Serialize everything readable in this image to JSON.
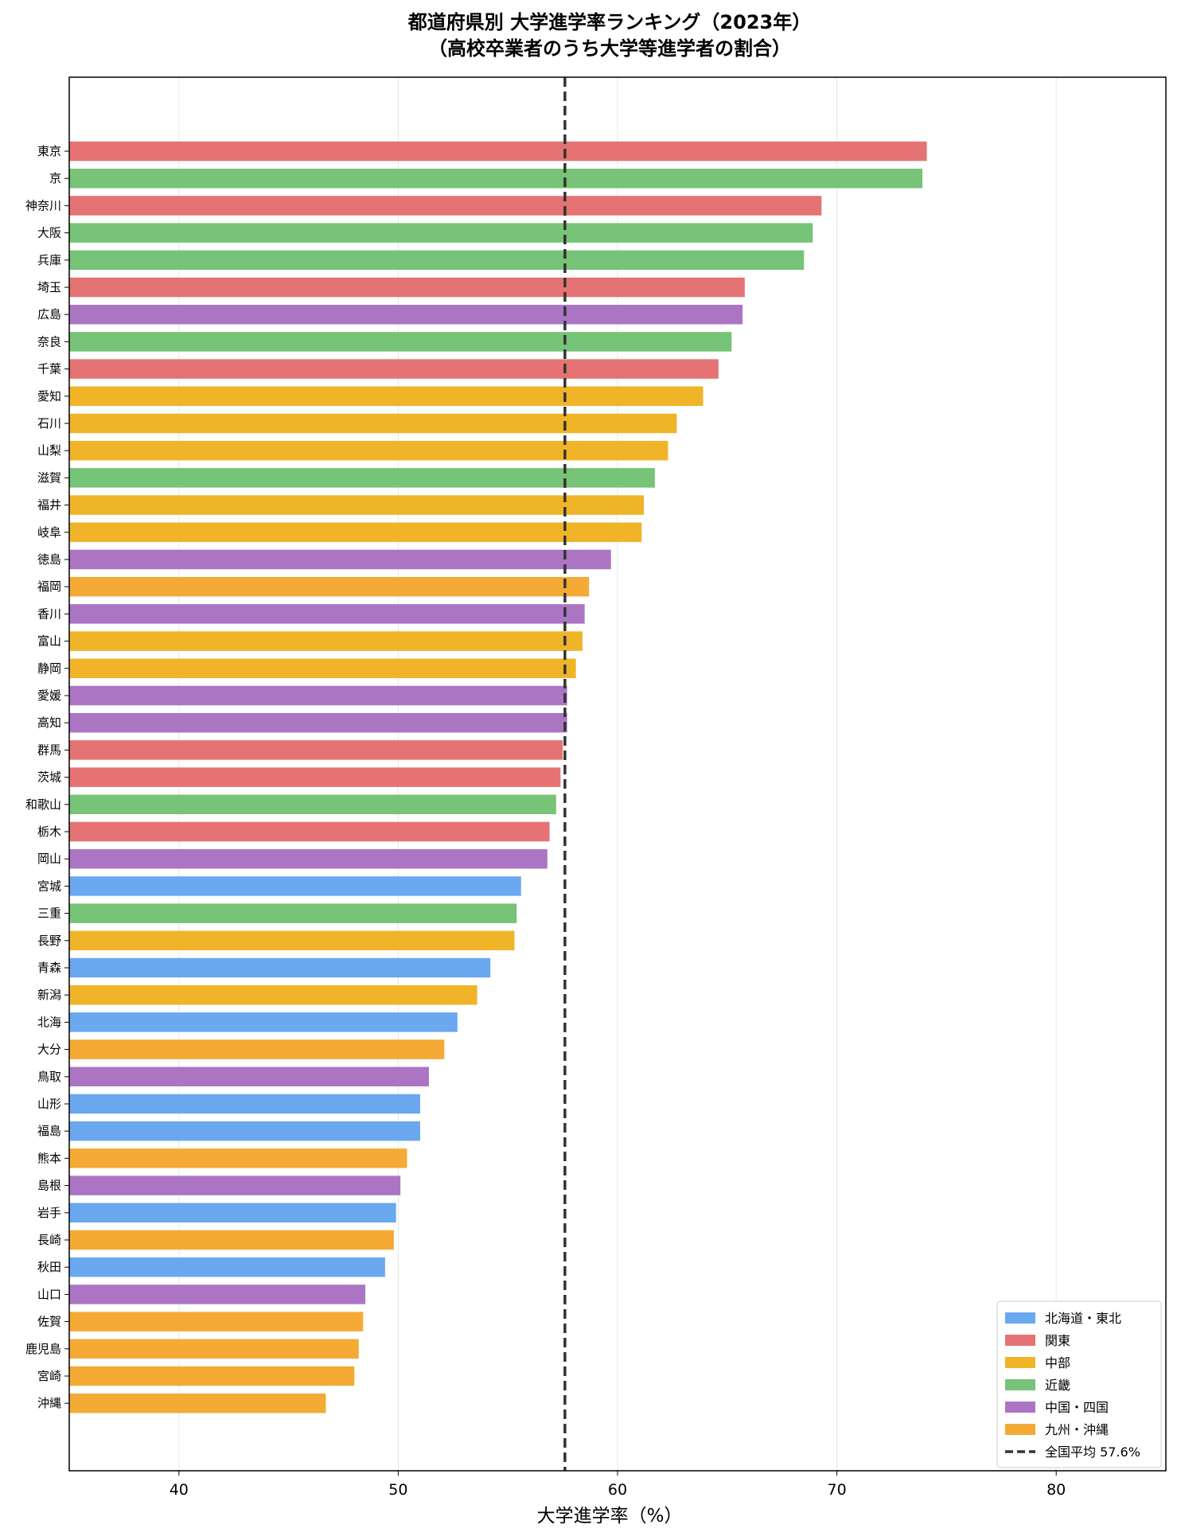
{
  "chart_data": {
    "type": "bar",
    "orientation": "horizontal",
    "title": "都道府県別 大学進学率ランキング（2023年）",
    "subtitle": "（高校卒業者のうち大学等進学者の割合）",
    "xlabel": "大学進学率（%）",
    "ylabel": "",
    "xlim": [
      35,
      85
    ],
    "xticks": [
      40,
      50,
      60,
      70,
      80
    ],
    "grid": "x",
    "legend_position": "bottom-right",
    "reference_line": {
      "value": 57.6,
      "label": "全国平均 57.6%",
      "style": "dashed",
      "color": "#333333"
    },
    "regions": [
      {
        "key": "hokkaido_tohoku",
        "name": "北海道・東北",
        "color": "#6aa8f0"
      },
      {
        "key": "kanto",
        "name": "関東",
        "color": "#e57373"
      },
      {
        "key": "chubu",
        "name": "中部",
        "color": "#f0b429"
      },
      {
        "key": "kinki",
        "name": "近畿",
        "color": "#77c377"
      },
      {
        "key": "chugoku_shikoku",
        "name": "中国・四国",
        "color": "#ab75c4"
      },
      {
        "key": "kyushu_okinawa",
        "name": "九州・沖縄",
        "color": "#f4aa35"
      }
    ],
    "bars": [
      {
        "label": "東京",
        "value": 74.1,
        "region": "kanto"
      },
      {
        "label": "京",
        "value": 73.9,
        "region": "kinki"
      },
      {
        "label": "神奈川",
        "value": 69.3,
        "region": "kanto"
      },
      {
        "label": "大阪",
        "value": 68.9,
        "region": "kinki"
      },
      {
        "label": "兵庫",
        "value": 68.5,
        "region": "kinki"
      },
      {
        "label": "埼玉",
        "value": 65.8,
        "region": "kanto"
      },
      {
        "label": "広島",
        "value": 65.7,
        "region": "chugoku_shikoku"
      },
      {
        "label": "奈良",
        "value": 65.2,
        "region": "kinki"
      },
      {
        "label": "千葉",
        "value": 64.6,
        "region": "kanto"
      },
      {
        "label": "愛知",
        "value": 63.9,
        "region": "chubu"
      },
      {
        "label": "石川",
        "value": 62.7,
        "region": "chubu"
      },
      {
        "label": "山梨",
        "value": 62.3,
        "region": "chubu"
      },
      {
        "label": "滋賀",
        "value": 61.7,
        "region": "kinki"
      },
      {
        "label": "福井",
        "value": 61.2,
        "region": "chubu"
      },
      {
        "label": "岐阜",
        "value": 61.1,
        "region": "chubu"
      },
      {
        "label": "徳島",
        "value": 59.7,
        "region": "chugoku_shikoku"
      },
      {
        "label": "福岡",
        "value": 58.7,
        "region": "kyushu_okinawa"
      },
      {
        "label": "香川",
        "value": 58.5,
        "region": "chugoku_shikoku"
      },
      {
        "label": "富山",
        "value": 58.4,
        "region": "chubu"
      },
      {
        "label": "静岡",
        "value": 58.1,
        "region": "chubu"
      },
      {
        "label": "愛媛",
        "value": 57.7,
        "region": "chugoku_shikoku"
      },
      {
        "label": "高知",
        "value": 57.7,
        "region": "chugoku_shikoku"
      },
      {
        "label": "群馬",
        "value": 57.5,
        "region": "kanto"
      },
      {
        "label": "茨城",
        "value": 57.4,
        "region": "kanto"
      },
      {
        "label": "和歌山",
        "value": 57.2,
        "region": "kinki"
      },
      {
        "label": "栃木",
        "value": 56.9,
        "region": "kanto"
      },
      {
        "label": "岡山",
        "value": 56.8,
        "region": "chugoku_shikoku"
      },
      {
        "label": "宮城",
        "value": 55.6,
        "region": "hokkaido_tohoku"
      },
      {
        "label": "三重",
        "value": 55.4,
        "region": "kinki"
      },
      {
        "label": "長野",
        "value": 55.3,
        "region": "chubu"
      },
      {
        "label": "青森",
        "value": 54.2,
        "region": "hokkaido_tohoku"
      },
      {
        "label": "新潟",
        "value": 53.6,
        "region": "chubu"
      },
      {
        "label": "北海",
        "value": 52.7,
        "region": "hokkaido_tohoku"
      },
      {
        "label": "大分",
        "value": 52.1,
        "region": "kyushu_okinawa"
      },
      {
        "label": "鳥取",
        "value": 51.4,
        "region": "chugoku_shikoku"
      },
      {
        "label": "山形",
        "value": 51.0,
        "region": "hokkaido_tohoku"
      },
      {
        "label": "福島",
        "value": 51.0,
        "region": "hokkaido_tohoku"
      },
      {
        "label": "熊本",
        "value": 50.4,
        "region": "kyushu_okinawa"
      },
      {
        "label": "島根",
        "value": 50.1,
        "region": "chugoku_shikoku"
      },
      {
        "label": "岩手",
        "value": 49.9,
        "region": "hokkaido_tohoku"
      },
      {
        "label": "長崎",
        "value": 49.8,
        "region": "kyushu_okinawa"
      },
      {
        "label": "秋田",
        "value": 49.4,
        "region": "hokkaido_tohoku"
      },
      {
        "label": "山口",
        "value": 48.5,
        "region": "chugoku_shikoku"
      },
      {
        "label": "佐賀",
        "value": 48.4,
        "region": "kyushu_okinawa"
      },
      {
        "label": "鹿児島",
        "value": 48.2,
        "region": "kyushu_okinawa"
      },
      {
        "label": "宮崎",
        "value": 48.0,
        "region": "kyushu_okinawa"
      },
      {
        "label": "沖縄",
        "value": 46.7,
        "region": "kyushu_okinawa"
      }
    ]
  }
}
